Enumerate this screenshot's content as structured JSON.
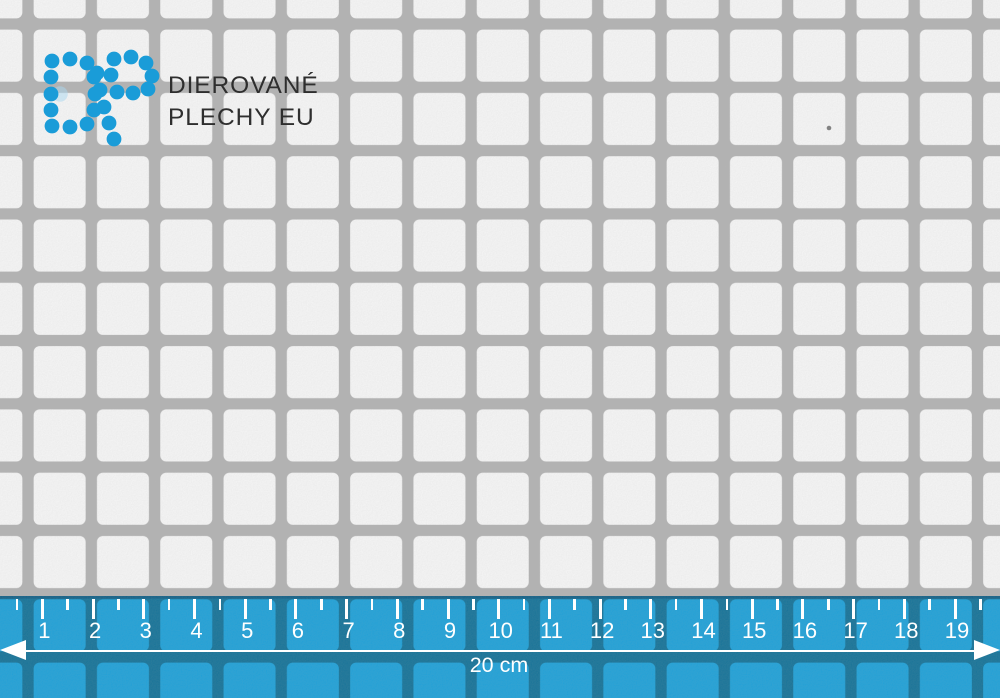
{
  "brand": {
    "logo_letters": "DP",
    "line1": "DIEROVANÉ",
    "line2": "PLECHY EU"
  },
  "ruler": {
    "numbers": [
      1,
      2,
      3,
      4,
      5,
      6,
      7,
      8,
      9,
      10,
      11,
      12,
      13,
      14,
      15,
      16,
      17,
      18,
      19
    ],
    "label": "20 cm"
  },
  "colors": {
    "brand_blue": "#1a9cd8",
    "metal_gray": "#b3b3b3",
    "hole_white": "#fafafa",
    "ruler_hole_blue": "#18a0da",
    "ruler_bar_blue": "#0e7097",
    "ruler_edge_dark": "#0b5d85",
    "wordmark_text": "#2e2e2e",
    "ruler_text": "#ffffff"
  }
}
